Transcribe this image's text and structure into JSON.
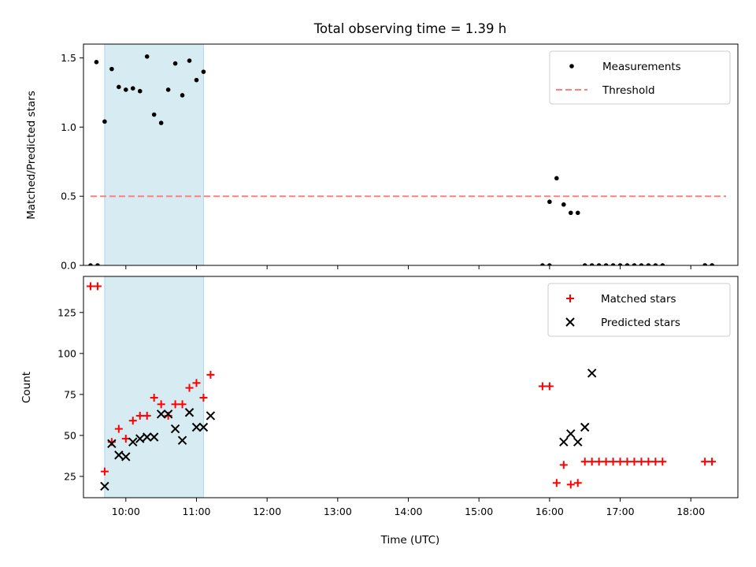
{
  "chart_data": [
    {
      "type": "scatter",
      "title": "Total observing time = 1.39 h",
      "xlabel": "",
      "ylabel": "Matched/Predicted stars",
      "xlim": [
        "09:24",
        "18:40"
      ],
      "ylim": [
        0,
        1.6
      ],
      "grid": false,
      "legend_position": "top-right",
      "yticks": [
        0,
        0.5,
        1.0,
        1.5
      ],
      "ytick_labels": [
        "0.0",
        "0.5",
        "1.0",
        "1.5"
      ],
      "shaded_interval": [
        "09:42",
        "11:06"
      ],
      "shade_color": "#add8e6",
      "series": [
        {
          "name": "Measurements",
          "kind": "points",
          "color": "#000000",
          "x": [
            "09:35",
            "09:42",
            "09:48",
            "09:54",
            "10:00",
            "10:06",
            "10:12",
            "10:18",
            "10:24",
            "10:30",
            "10:36",
            "10:42",
            "10:48",
            "10:54",
            "11:00",
            "11:06",
            "16:00",
            "16:06",
            "16:12",
            "16:18",
            "16:24",
            "16:30",
            "16:36",
            "16:42",
            "16:48",
            "16:54",
            "17:00",
            "17:06",
            "17:12",
            "17:18",
            "17:24",
            "17:30",
            "17:36",
            "18:12",
            "18:18"
          ],
          "y": [
            1.47,
            1.04,
            1.42,
            1.29,
            1.27,
            1.28,
            1.26,
            1.51,
            1.09,
            1.03,
            1.27,
            1.46,
            1.23,
            1.48,
            1.34,
            1.4,
            0.46,
            0.63,
            0.44,
            0.38,
            0.38,
            0,
            0,
            0,
            0,
            0,
            0,
            0,
            0,
            0,
            0,
            0,
            0,
            0,
            0
          ]
        },
        {
          "name": "Threshold",
          "kind": "dashed-line",
          "color": "#ff7f7f",
          "x": [
            "09:30",
            "18:30"
          ],
          "y": [
            0.5,
            0.5
          ]
        }
      ],
      "zero_points_x": [
        "09:30",
        "09:36",
        "15:54",
        "16:00",
        "18:12",
        "18:18"
      ]
    },
    {
      "type": "scatter",
      "title": "",
      "xlabel": "Time (UTC)",
      "ylabel": "Count",
      "xlim": [
        "09:24",
        "18:40"
      ],
      "ylim": [
        12,
        147
      ],
      "grid": false,
      "legend_position": "top-right",
      "yticks": [
        25,
        50,
        75,
        100,
        125
      ],
      "ytick_labels": [
        "25",
        "50",
        "75",
        "100",
        "125"
      ],
      "xticks": [
        "10:00",
        "11:00",
        "12:00",
        "13:00",
        "14:00",
        "15:00",
        "16:00",
        "17:00",
        "18:00"
      ],
      "xtick_labels": [
        "10:00",
        "11:00",
        "12:00",
        "13:00",
        "14:00",
        "15:00",
        "16:00",
        "17:00",
        "18:00"
      ],
      "shaded_interval": [
        "09:42",
        "11:06"
      ],
      "shade_color": "#add8e6",
      "series": [
        {
          "name": "Matched stars",
          "kind": "plus",
          "color": "#ff0000",
          "x": [
            "09:30",
            "09:36",
            "09:42",
            "09:48",
            "09:54",
            "10:00",
            "10:06",
            "10:12",
            "10:18",
            "10:24",
            "10:30",
            "10:36",
            "10:42",
            "10:48",
            "10:54",
            "11:00",
            "11:06",
            "11:12",
            "15:54",
            "16:00",
            "16:06",
            "16:12",
            "16:18",
            "16:24",
            "16:30",
            "16:36",
            "16:42",
            "16:48",
            "16:54",
            "17:00",
            "17:06",
            "17:12",
            "17:18",
            "17:24",
            "17:30",
            "17:36",
            "18:12",
            "18:18"
          ],
          "y": [
            141,
            141,
            28,
            46,
            54,
            48,
            59,
            62,
            62,
            73,
            69,
            62,
            69,
            69,
            79,
            82,
            73,
            87,
            80,
            80,
            21,
            32,
            20,
            21,
            34,
            34,
            34,
            34,
            34,
            34,
            34,
            34,
            34,
            34,
            34,
            34,
            34,
            34
          ]
        },
        {
          "name": "Predicted stars",
          "kind": "x",
          "color": "#000000",
          "x": [
            "09:42",
            "09:48",
            "09:54",
            "10:00",
            "10:06",
            "10:12",
            "10:18",
            "10:24",
            "10:30",
            "10:36",
            "10:42",
            "10:48",
            "10:54",
            "11:00",
            "11:06",
            "11:12",
            "16:12",
            "16:18",
            "16:24",
            "16:30",
            "16:36"
          ],
          "y": [
            19,
            45,
            38,
            37,
            46,
            48,
            49,
            49,
            63,
            63,
            54,
            47,
            64,
            55,
            55,
            62,
            46,
            51,
            46,
            55,
            88
          ]
        }
      ]
    }
  ]
}
